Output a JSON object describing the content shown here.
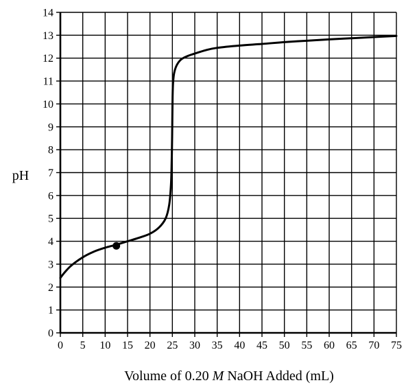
{
  "chart_data": {
    "type": "line",
    "title": "",
    "xlabel_parts": [
      "Volume of 0.20 ",
      "M",
      " NaOH Added (mL)"
    ],
    "ylabel": "pH",
    "xlim": [
      0,
      75
    ],
    "ylim": [
      0,
      14
    ],
    "x_ticks": [
      0,
      5,
      10,
      15,
      20,
      25,
      30,
      35,
      40,
      45,
      50,
      55,
      60,
      65,
      70,
      75
    ],
    "y_ticks": [
      0,
      1,
      2,
      3,
      4,
      5,
      6,
      7,
      8,
      9,
      10,
      11,
      12,
      13,
      14
    ],
    "grid": true,
    "series": [
      {
        "x": [
          0,
          1,
          2.5,
          5,
          7.5,
          10,
          12.5,
          15,
          17.5,
          20,
          22,
          23.5,
          24.3,
          24.7,
          24.85,
          24.95,
          25.0,
          25.05,
          25.15,
          25.4,
          26,
          27,
          28.5,
          30,
          32.5,
          35,
          40,
          45,
          50,
          55,
          60,
          65,
          70,
          75
        ],
        "y": [
          2.4,
          2.65,
          2.95,
          3.3,
          3.55,
          3.72,
          3.85,
          4.0,
          4.15,
          4.33,
          4.6,
          5.0,
          5.6,
          6.5,
          7.5,
          8.6,
          9.5,
          10.3,
          10.9,
          11.35,
          11.7,
          11.95,
          12.1,
          12.2,
          12.35,
          12.45,
          12.55,
          12.62,
          12.7,
          12.76,
          12.82,
          12.87,
          12.92,
          12.97
        ]
      }
    ],
    "marked_point": {
      "x": 12.5,
      "y": 3.8
    }
  }
}
